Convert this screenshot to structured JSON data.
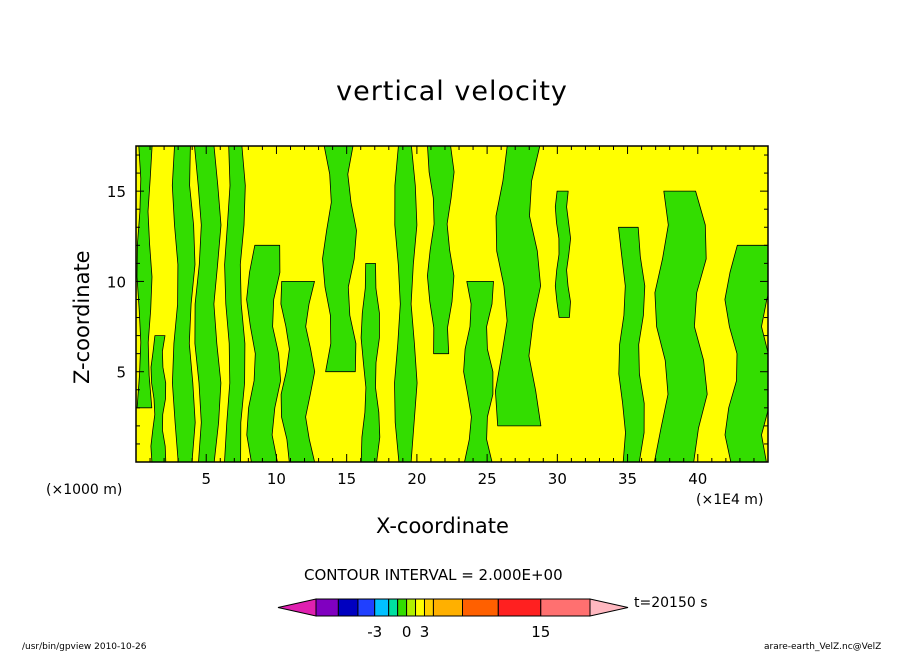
{
  "chart_data": {
    "type": "heatmap",
    "title": "vertical velocity",
    "xlabel": "X-coordinate",
    "ylabel": "Z-coordinate",
    "x_unit_left": "(×1000 m)",
    "x_unit_right": "(×1E4 m)",
    "xlim": [
      0,
      45
    ],
    "ylim": [
      0,
      17.5
    ],
    "x_ticks": [
      "5",
      "10",
      "15",
      "20",
      "25",
      "30",
      "35",
      "40"
    ],
    "x_tick_values": [
      5,
      10,
      15,
      20,
      25,
      30,
      35,
      40
    ],
    "y_ticks": [
      "5",
      "10",
      "15"
    ],
    "y_tick_values": [
      5,
      10,
      15
    ],
    "contour_interval": "CONTOUR INTERVAL = 2.000E+00",
    "time_label": "t=20150 s",
    "colors": {
      "negative": "#33dd00",
      "positive": "#ffff00",
      "frame": "#000000"
    },
    "colorbar": {
      "labels": [
        "-3",
        "0",
        "3",
        "15"
      ],
      "label_values": [
        -3,
        0,
        3,
        15
      ],
      "colors": [
        "#e020b0",
        "#8000c0",
        "#0000c0",
        "#2040ff",
        "#00c0ff",
        "#00e0a0",
        "#33dd00",
        "#b0f000",
        "#ffff00",
        "#ffd000",
        "#ffb000",
        "#ff6000",
        "#ff2020",
        "#ff7070",
        "#ffb8c0"
      ]
    },
    "regions": [
      {
        "sign": "negative",
        "x": [
          0.2,
          1.0
        ],
        "z": [
          3,
          17.5
        ]
      },
      {
        "sign": "negative",
        "x": [
          1.2,
          2.0
        ],
        "z": [
          0,
          7
        ]
      },
      {
        "sign": "negative",
        "x": [
          2.8,
          4.0
        ],
        "z": [
          0,
          17.5
        ]
      },
      {
        "sign": "negative",
        "x": [
          4.4,
          5.8
        ],
        "z": [
          0,
          17.5
        ]
      },
      {
        "sign": "negative",
        "x": [
          6.5,
          7.6
        ],
        "z": [
          0,
          17.5
        ]
      },
      {
        "sign": "negative",
        "x": [
          8.2,
          10.0
        ],
        "z": [
          0,
          12
        ]
      },
      {
        "sign": "negative",
        "x": [
          10.6,
          12.4
        ],
        "z": [
          0,
          10
        ]
      },
      {
        "sign": "negative",
        "x": [
          13.6,
          15.4
        ],
        "z": [
          5,
          17.5
        ]
      },
      {
        "sign": "negative",
        "x": [
          16.2,
          17.2
        ],
        "z": [
          0,
          11
        ]
      },
      {
        "sign": "negative",
        "x": [
          18.6,
          19.8
        ],
        "z": [
          0,
          17.5
        ]
      },
      {
        "sign": "negative",
        "x": [
          21.0,
          22.4
        ],
        "z": [
          6,
          17.5
        ]
      },
      {
        "sign": "negative",
        "x": [
          23.6,
          25.2
        ],
        "z": [
          0,
          10
        ]
      },
      {
        "sign": "negative",
        "x": [
          26.0,
          28.4
        ],
        "z": [
          2,
          17.5
        ]
      },
      {
        "sign": "negative",
        "x": [
          30.0,
          30.8
        ],
        "z": [
          8,
          15
        ]
      },
      {
        "sign": "negative",
        "x": [
          34.6,
          36.0
        ],
        "z": [
          0,
          13
        ]
      },
      {
        "sign": "negative",
        "x": [
          37.4,
          40.2
        ],
        "z": [
          0,
          15
        ]
      },
      {
        "sign": "negative",
        "x": [
          42.4,
          45.0
        ],
        "z": [
          0,
          12
        ]
      }
    ]
  },
  "footer": {
    "left": "/usr/bin/gpview   2010-10-26",
    "right": "arare-earth_VelZ.nc@VelZ"
  }
}
